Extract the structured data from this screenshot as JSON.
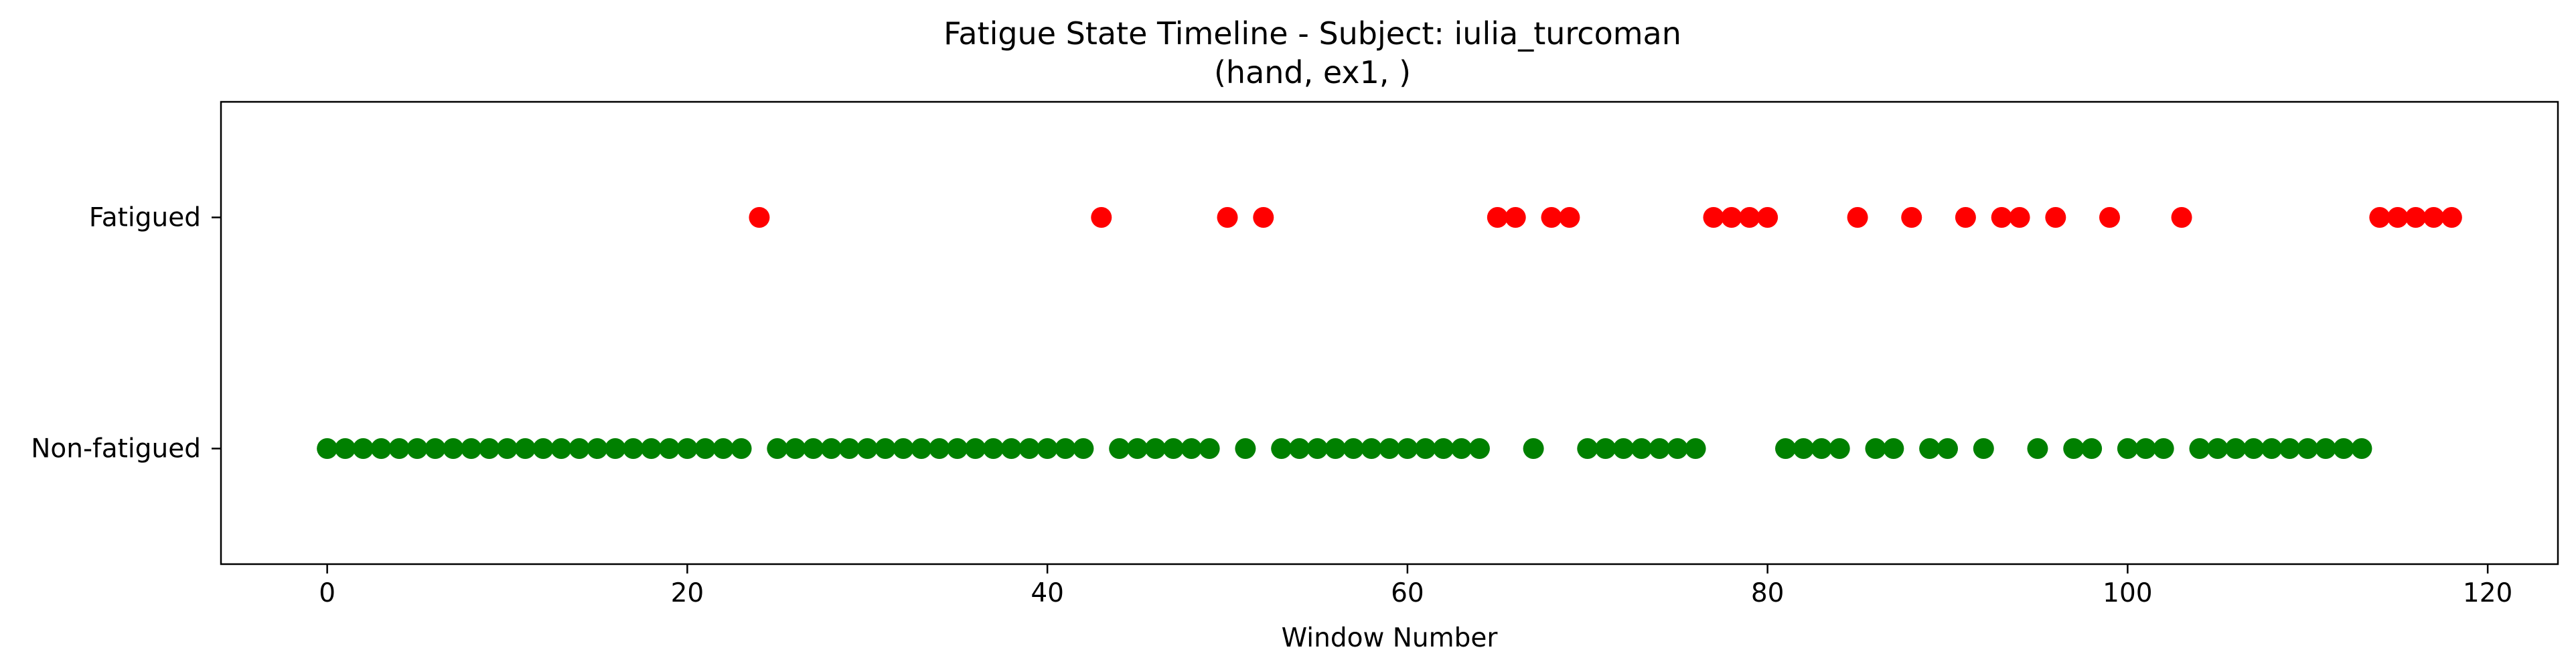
{
  "chart_data": {
    "type": "scatter",
    "title": "Fatigue State Timeline - Subject: iulia_turcoman",
    "subtitle": "(hand, ex1, )",
    "xlabel": "Window Number",
    "ylabel": "",
    "xlim": [
      -5.9,
      123.9
    ],
    "ylim": [
      -0.5,
      1.5
    ],
    "x_ticks": [
      0,
      20,
      40,
      60,
      80,
      100,
      120
    ],
    "y_ticks": [
      {
        "value": 0,
        "label": "Non-fatigued"
      },
      {
        "value": 1,
        "label": "Fatigued"
      }
    ],
    "grid": false,
    "legend": "none",
    "series": [
      {
        "color": "#008000",
        "y": 0,
        "x": [
          0,
          1,
          2,
          3,
          4,
          5,
          6,
          7,
          8,
          9,
          10,
          11,
          12,
          13,
          14,
          15,
          16,
          17,
          18,
          19,
          20,
          21,
          22,
          23,
          25,
          26,
          27,
          28,
          29,
          30,
          31,
          32,
          33,
          34,
          35,
          36,
          37,
          38,
          39,
          40,
          41,
          42,
          44,
          45,
          46,
          47,
          48,
          49,
          51,
          53,
          54,
          55,
          56,
          57,
          58,
          59,
          60,
          61,
          62,
          63,
          64,
          67,
          70,
          71,
          72,
          73,
          74,
          75,
          76,
          81,
          82,
          83,
          84,
          86,
          87,
          89,
          90,
          92,
          95,
          97,
          98,
          100,
          101,
          102,
          104,
          105,
          106,
          107,
          108,
          109,
          110,
          111,
          112,
          113
        ]
      },
      {
        "color": "#ff0000",
        "y": 1,
        "x": [
          24,
          43,
          50,
          52,
          65,
          66,
          68,
          69,
          77,
          78,
          79,
          80,
          85,
          88,
          91,
          93,
          94,
          96,
          99,
          103,
          114,
          115,
          116,
          117,
          118
        ]
      }
    ]
  }
}
